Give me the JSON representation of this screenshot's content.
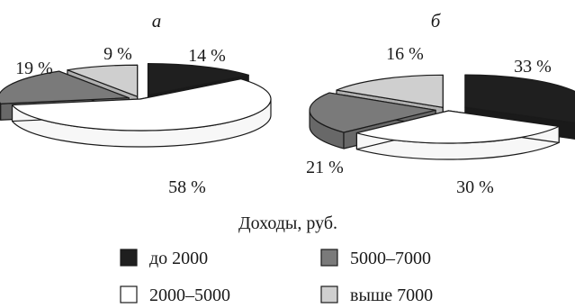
{
  "chart_data": [
    {
      "type": "pie",
      "panel_label": "а",
      "style": "3d-exploded",
      "slices": [
        {
          "label": "до 2000",
          "value": 14,
          "value_label": "14 %",
          "color": "#1f1f1f"
        },
        {
          "label": "2000–5000",
          "value": 58,
          "value_label": "58 %",
          "color": "#ffffff"
        },
        {
          "label": "5000–7000",
          "value": 19,
          "value_label": "19 %",
          "color": "#7a7a7a"
        },
        {
          "label": "выше 7000",
          "value": 9,
          "value_label": "9 %",
          "color": "#cfcfcf"
        }
      ]
    },
    {
      "type": "pie",
      "panel_label": "б",
      "style": "3d-exploded",
      "slices": [
        {
          "label": "до 2000",
          "value": 33,
          "value_label": "33 %",
          "color": "#1f1f1f"
        },
        {
          "label": "2000–5000",
          "value": 30,
          "value_label": "30 %",
          "color": "#ffffff"
        },
        {
          "label": "5000–7000",
          "value": 21,
          "value_label": "21 %",
          "color": "#7a7a7a"
        },
        {
          "label": "выше 7000",
          "value": 16,
          "value_label": "16 %",
          "color": "#cfcfcf"
        }
      ]
    }
  ],
  "legend": {
    "title": "Доходы, руб.",
    "items": [
      {
        "label": "до 2000",
        "color": "#1f1f1f"
      },
      {
        "label": "5000–7000",
        "color": "#7a7a7a"
      },
      {
        "label": "2000–5000",
        "color": "#ffffff"
      },
      {
        "label": "выше 7000",
        "color": "#cfcfcf"
      }
    ]
  }
}
